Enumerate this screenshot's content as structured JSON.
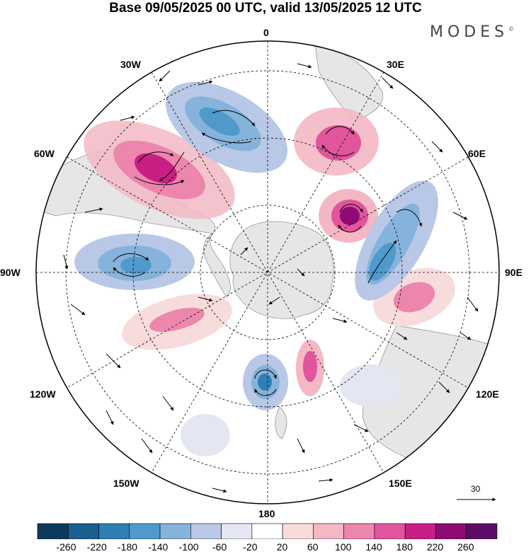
{
  "title": "Base 09/05/2025 00 UTC, valid 13/05/2025 12 UTC",
  "brand": "MODES",
  "brand_mark": "©",
  "longitude_labels": [
    "0",
    "30E",
    "60E",
    "90E",
    "120E",
    "150E",
    "180",
    "150W",
    "120W",
    "90W",
    "60W",
    "30W"
  ],
  "reference_vector_label": "30",
  "colorbar": {
    "tick_labels": [
      "-260",
      "-220",
      "-180",
      "-140",
      "-100",
      "-60",
      "-20",
      "20",
      "60",
      "100",
      "140",
      "180",
      "220",
      "260"
    ],
    "colors": [
      "#0d3b5e",
      "#1a5f8f",
      "#2f7fb4",
      "#4f9acb",
      "#86b3db",
      "#b9c8e6",
      "#e4e6f2",
      "#ffffff",
      "#f8dcdc",
      "#f3b8c4",
      "#ec86ad",
      "#e0559c",
      "#c81f84",
      "#8e0b74",
      "#5b0e66"
    ]
  },
  "anomalies": [
    {
      "name": "anomaly-positive-south-atlantic",
      "color": "#ec86ad",
      "core": "#c81f84"
    },
    {
      "name": "anomaly-positive-south-africa",
      "color": "#ec86ad",
      "core": "#e0559c"
    },
    {
      "name": "anomaly-positive-indian-ocean",
      "color": "#ec86ad",
      "core": "#c81f84"
    },
    {
      "name": "anomaly-negative-southwest-atlantic",
      "color": "#86b3db",
      "core": "#4f9acb"
    },
    {
      "name": "anomaly-negative-indian-ocean",
      "color": "#86b3db",
      "core": "#4f9acb"
    },
    {
      "name": "anomaly-negative-southeast-pacific",
      "color": "#86b3db",
      "core": "#4f9acb"
    },
    {
      "name": "anomaly-negative-ross-sea",
      "color": "#86b3db",
      "core": "#2f7fb4"
    }
  ]
}
